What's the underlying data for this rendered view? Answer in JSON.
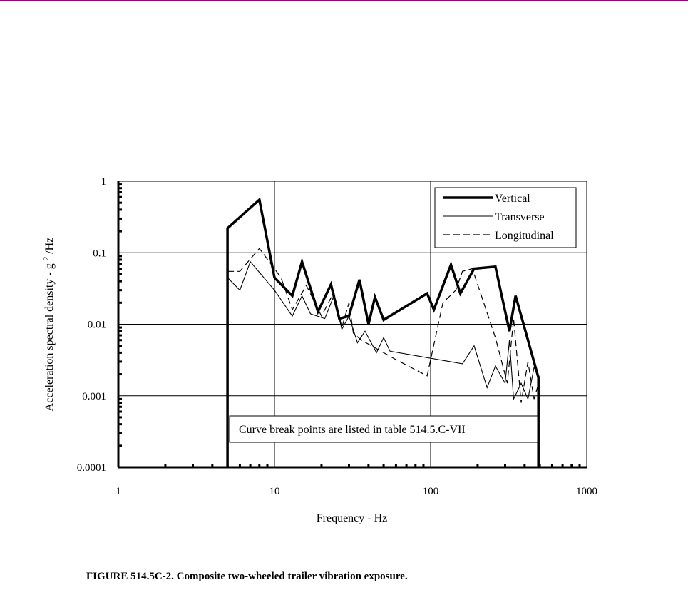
{
  "caption": "FIGURE 514.5C-2.  Composite two-wheeled trailer vibration exposure.",
  "chart_data": {
    "type": "line",
    "title": "",
    "xlabel": "Frequency - Hz",
    "ylabel_main": "Acceleration spectral density - g",
    "ylabel_sup": "2",
    "ylabel_tail": "/Hz",
    "x_scale": "log",
    "y_scale": "log",
    "xlim": [
      1,
      1000
    ],
    "ylim": [
      0.0001,
      1
    ],
    "x_ticks": [
      1,
      10,
      100,
      1000
    ],
    "x_tick_labels": [
      "1",
      "10",
      "100",
      "1000"
    ],
    "y_ticks": [
      0.0001,
      0.001,
      0.01,
      0.1,
      1
    ],
    "y_tick_labels": [
      "0.0001",
      "0.001",
      "0.01",
      "0.1",
      "1"
    ],
    "grid": true,
    "legend_position": "top-right",
    "annotation": "Curve break points are listed in table 514.5.C-VII",
    "series": [
      {
        "name": "Vertical",
        "style": "thick-solid",
        "color": "#000000",
        "x": [
          5,
          5,
          8,
          10,
          13,
          15,
          19,
          23,
          26,
          30,
          35,
          40,
          44,
          50,
          95,
          105,
          135,
          155,
          190,
          260,
          320,
          350,
          490,
          490
        ],
        "y": [
          0.0001,
          0.22,
          0.55,
          0.045,
          0.025,
          0.075,
          0.015,
          0.036,
          0.012,
          0.013,
          0.042,
          0.01,
          0.024,
          0.0115,
          0.027,
          0.016,
          0.068,
          0.027,
          0.06,
          0.064,
          0.008,
          0.025,
          0.0018,
          0.0001
        ]
      },
      {
        "name": "Transverse",
        "style": "thin-solid",
        "color": "#000000",
        "x": [
          5,
          6,
          7,
          10,
          13,
          15,
          17,
          21,
          24,
          27,
          30,
          34,
          38,
          45,
          50,
          55,
          160,
          190,
          230,
          260,
          300,
          320,
          340,
          380,
          420,
          460,
          500
        ],
        "y": [
          0.045,
          0.03,
          0.075,
          0.03,
          0.013,
          0.025,
          0.014,
          0.012,
          0.025,
          0.0085,
          0.013,
          0.0055,
          0.008,
          0.004,
          0.0065,
          0.0042,
          0.0028,
          0.005,
          0.0013,
          0.0026,
          0.0015,
          0.006,
          0.0009,
          0.0015,
          0.0009,
          0.0025,
          0.0018
        ]
      },
      {
        "name": "Longitudinal",
        "style": "dashed",
        "color": "#000000",
        "x": [
          5,
          6,
          8,
          11,
          13,
          16,
          20,
          24,
          27,
          30,
          32,
          36,
          60,
          95,
          120,
          145,
          160,
          185,
          260,
          310,
          340,
          380,
          420,
          460,
          500
        ],
        "y": [
          0.055,
          0.055,
          0.115,
          0.045,
          0.016,
          0.035,
          0.013,
          0.028,
          0.009,
          0.02,
          0.0075,
          0.006,
          0.0032,
          0.0019,
          0.02,
          0.03,
          0.055,
          0.06,
          0.0065,
          0.0015,
          0.012,
          0.0008,
          0.003,
          0.0009,
          0.0017
        ]
      }
    ]
  }
}
